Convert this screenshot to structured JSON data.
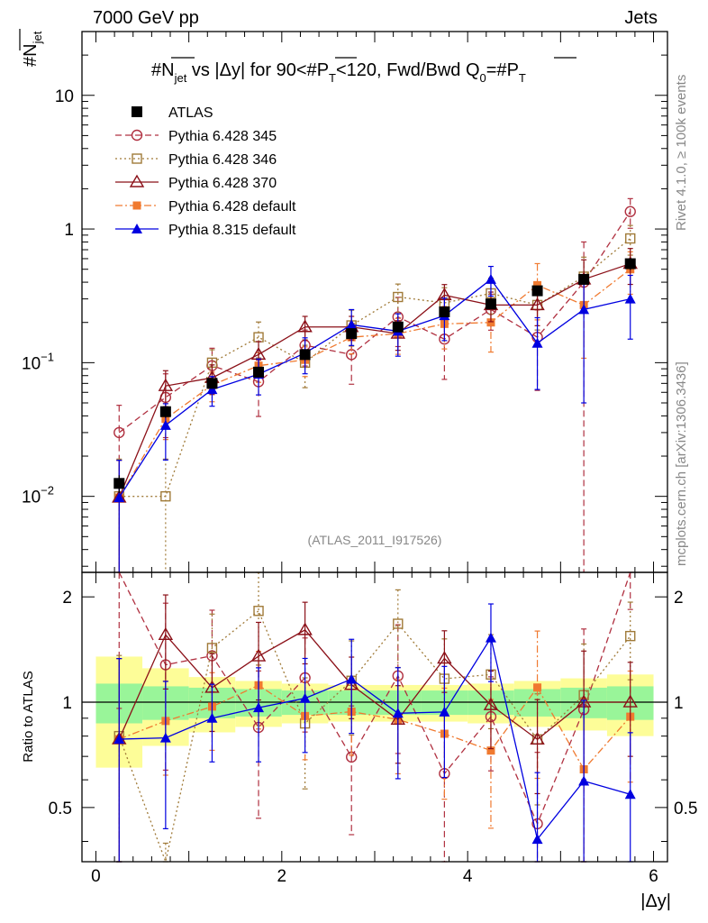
{
  "header": {
    "left": "7000 GeV pp",
    "right": "Jets"
  },
  "side_text": {
    "rivet": "Rivet 4.1.0, ≥ 100k events",
    "mcplots": "mcplots.cern.ch [arXiv:1306.3436]"
  },
  "chart_data": {
    "type": "line",
    "title": "#N_jet vs |Δy| for 90<#P_T<120, Fwd/Bwd Q0=#P_T",
    "title_parts": {
      "t1": "#N",
      "t2": "jet",
      "t3": " vs |Δy| for 90<#",
      "t4": "P",
      "t5": "T",
      "t6": "<120, Fwd/Bwd Q",
      "t7": "0",
      "t8": "=#",
      "t9": "P",
      "t10": "T"
    },
    "ylabel": {
      "main": "#N",
      "sub": "jet"
    },
    "xlabel": "|Δy|",
    "watermark": "(ATLAS_2011_I917526)",
    "ratio_ylabel": "Ratio to ATLAS",
    "xlim": [
      -0.15,
      6.15
    ],
    "ylim": [
      0.0027,
      30
    ],
    "yscale": "log",
    "ratio_ylim": [
      0.35,
      2.35
    ],
    "x_ticks": [
      "0",
      "2",
      "4",
      "6"
    ],
    "y_ticks": [
      {
        "label": "10",
        "exp": "",
        "value": 10
      },
      {
        "label": "1",
        "exp": "",
        "value": 1
      },
      {
        "label": "10",
        "exp": "−1",
        "value": 0.1
      },
      {
        "label": "10",
        "exp": "−2",
        "value": 0.01
      }
    ],
    "ratio_ticks": [
      "0.5",
      "1",
      "2"
    ],
    "x": [
      0.25,
      0.75,
      1.25,
      1.75,
      2.25,
      2.75,
      3.25,
      3.75,
      4.25,
      4.75,
      5.25,
      5.75
    ],
    "band_stat": [
      0.13,
      0.11,
      0.1,
      0.09,
      0.08,
      0.08,
      0.08,
      0.08,
      0.08,
      0.09,
      0.1,
      0.11
    ],
    "band_total": [
      0.35,
      0.25,
      0.18,
      0.15,
      0.13,
      0.12,
      0.12,
      0.12,
      0.13,
      0.15,
      0.17,
      0.2
    ],
    "series": [
      {
        "name": "ATLAS",
        "style": "data",
        "color": "#000000",
        "values": [
          0.0125,
          0.043,
          0.07,
          0.085,
          0.115,
          0.165,
          0.185,
          0.24,
          0.275,
          0.345,
          0.42,
          0.55
        ],
        "err": [
          0.15,
          0.1,
          0.08,
          0.07,
          0.07,
          0.06,
          0.06,
          0.07,
          0.07,
          0.08,
          0.09,
          0.1
        ]
      },
      {
        "name": "Pythia 6.428 345",
        "style": "circle-open",
        "dash": "7,4",
        "color": "#b03040",
        "values": [
          0.03,
          0.055,
          0.095,
          0.072,
          0.135,
          0.115,
          0.22,
          0.15,
          0.25,
          0.155,
          0.4,
          1.35
        ],
        "err": [
          0.6,
          0.5,
          0.35,
          0.45,
          0.3,
          0.4,
          0.4,
          0.5,
          0.3,
          0.6,
          1.0,
          0.25
        ]
      },
      {
        "name": "Pythia 6.428 346",
        "style": "square-open",
        "dash": "2,3",
        "color": "#a07a38",
        "values": [
          0.01,
          0.01,
          0.1,
          0.155,
          0.1,
          0.19,
          0.31,
          0.28,
          0.33,
          0.27,
          0.44,
          0.85
        ],
        "err": [
          0.9,
          0.9,
          0.25,
          0.3,
          0.35,
          0.3,
          0.25,
          0.3,
          0.3,
          0.35,
          0.4,
          0.25
        ]
      },
      {
        "name": "Pythia 6.428 370",
        "style": "triangle-open",
        "dash": "",
        "color": "#8b1018",
        "values": [
          0.0098,
          0.067,
          0.077,
          0.115,
          0.185,
          0.185,
          0.165,
          0.32,
          0.27,
          0.27,
          0.42,
          0.55
        ],
        "err": [
          0.9,
          0.3,
          0.25,
          0.25,
          0.2,
          0.2,
          0.25,
          0.2,
          0.25,
          0.3,
          0.4,
          0.3
        ]
      },
      {
        "name": "Pythia 6.428 default",
        "style": "square-filled",
        "dash": "8,3,2,3",
        "color": "#f07a30",
        "values": [
          0.0098,
          0.038,
          0.068,
          0.095,
          0.105,
          0.155,
          0.165,
          0.195,
          0.2,
          0.38,
          0.27,
          0.5
        ],
        "err": [
          0.9,
          0.3,
          0.25,
          0.25,
          0.25,
          0.25,
          0.3,
          0.35,
          0.4,
          0.45,
          0.6,
          0.35
        ]
      },
      {
        "name": "Pythia 8.315 default",
        "style": "triangle-filled",
        "dash": "",
        "color": "#0000e0",
        "values": [
          0.0098,
          0.034,
          0.063,
          0.082,
          0.118,
          0.192,
          0.172,
          0.225,
          0.42,
          0.14,
          0.25,
          0.3
        ],
        "err": [
          0.9,
          0.45,
          0.25,
          0.3,
          0.3,
          0.3,
          0.35,
          0.35,
          0.25,
          0.55,
          0.8,
          0.5
        ]
      }
    ]
  }
}
